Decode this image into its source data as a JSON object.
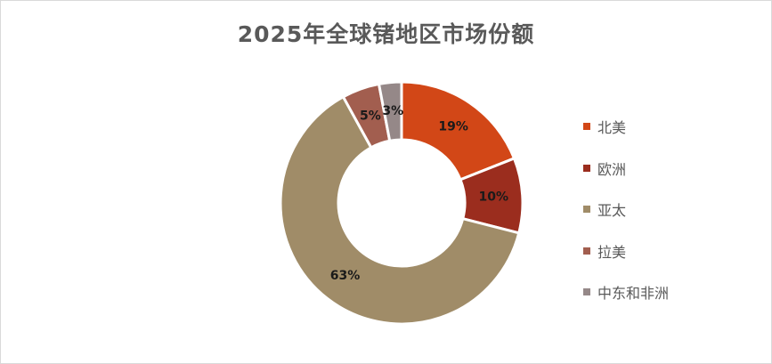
{
  "chart_data": {
    "type": "pie",
    "variant": "doughnut",
    "title": "2025年全球锗地区市场份额",
    "categories": [
      "北美",
      "欧洲",
      "亚太",
      "拉美",
      "中东和非洲"
    ],
    "values": [
      19,
      10,
      63,
      5,
      3
    ],
    "data_labels": [
      "19%",
      "10%",
      "63%",
      "5%",
      "3%"
    ],
    "unit": "%",
    "colors": [
      "#D24717",
      "#9B2D1E",
      "#A08C68",
      "#A25E4F",
      "#958888"
    ],
    "legend_position": "right"
  }
}
